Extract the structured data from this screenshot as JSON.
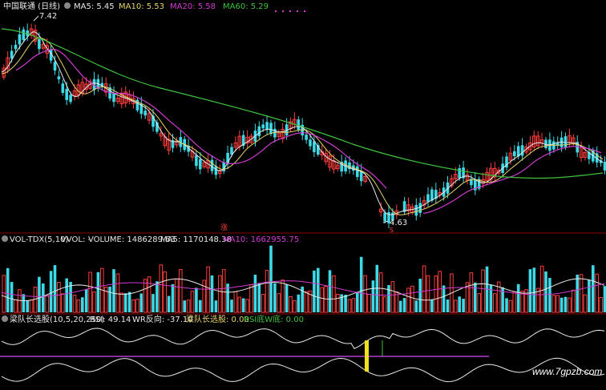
{
  "colors": {
    "up": "#ff3c3c",
    "down": "#3dd9e6",
    "ma5": "#e8e8e8",
    "ma10": "#e8d36a",
    "ma20": "#d23cd2",
    "ma60": "#3ec23e",
    "border": "#8a0000",
    "rsi": "#e8e8e8",
    "wr": "#e8e8e8",
    "longline": "#b43cd2",
    "marker": "#f0e020",
    "green_mark": "#3ec23e",
    "watermark": "#ffffff"
  },
  "header": {
    "title": "中国联通 (日线)",
    "ma5_label": "MA5: 5.45",
    "ma10_label": "MA10: 5.53",
    "ma20_label": "MA20: 5.58",
    "ma60_label": "MA60: 5.29",
    "high_label": "7.42",
    "low_label": "4.63",
    "zhang_mark": "涨",
    "s_mark": "S"
  },
  "volume_panel": {
    "name": "VOL-TDX(5,10)",
    "vvol": "VVOL: -",
    "volume": "VOLUME: 1486289.63",
    "ma5": "MA5: 1170148.38",
    "ma10": "MA10: 1662955.75"
  },
  "indicator_panel": {
    "name": "梁队长选股(10,5,20,250)",
    "rsi": "RSI: 49.14",
    "wr": "WR反向: -37.10",
    "pick": "梁队长选股: 0.00",
    "rsi_bottom": "RSI底W底: 0.00"
  },
  "watermark": "www.7gpzb.com",
  "chart_data": [
    {
      "type": "candlestick",
      "title": "中国联通 (日线)",
      "annotations": {
        "high": 7.42,
        "low": 4.63
      },
      "ylim": [
        4.4,
        7.6
      ],
      "series": [
        {
          "name": "MA5",
          "value": 5.45
        },
        {
          "name": "MA10",
          "value": 5.53
        },
        {
          "name": "MA20",
          "value": 5.58
        },
        {
          "name": "MA60",
          "value": 5.29
        }
      ]
    },
    {
      "type": "bar",
      "title": "VOL-TDX(5,10)",
      "series": [
        {
          "name": "VOLUME",
          "value": 1486289.63
        },
        {
          "name": "MA5",
          "value": 1170148.38
        },
        {
          "name": "MA10",
          "value": 1662955.75
        }
      ]
    },
    {
      "type": "line",
      "title": "梁队长选股(10,5,20,250)",
      "series": [
        {
          "name": "RSI",
          "value": 49.14
        },
        {
          "name": "WR反向",
          "value": -37.1
        },
        {
          "name": "梁队长选股",
          "value": 0.0
        },
        {
          "name": "RSI底W底",
          "value": 0.0
        }
      ]
    }
  ]
}
